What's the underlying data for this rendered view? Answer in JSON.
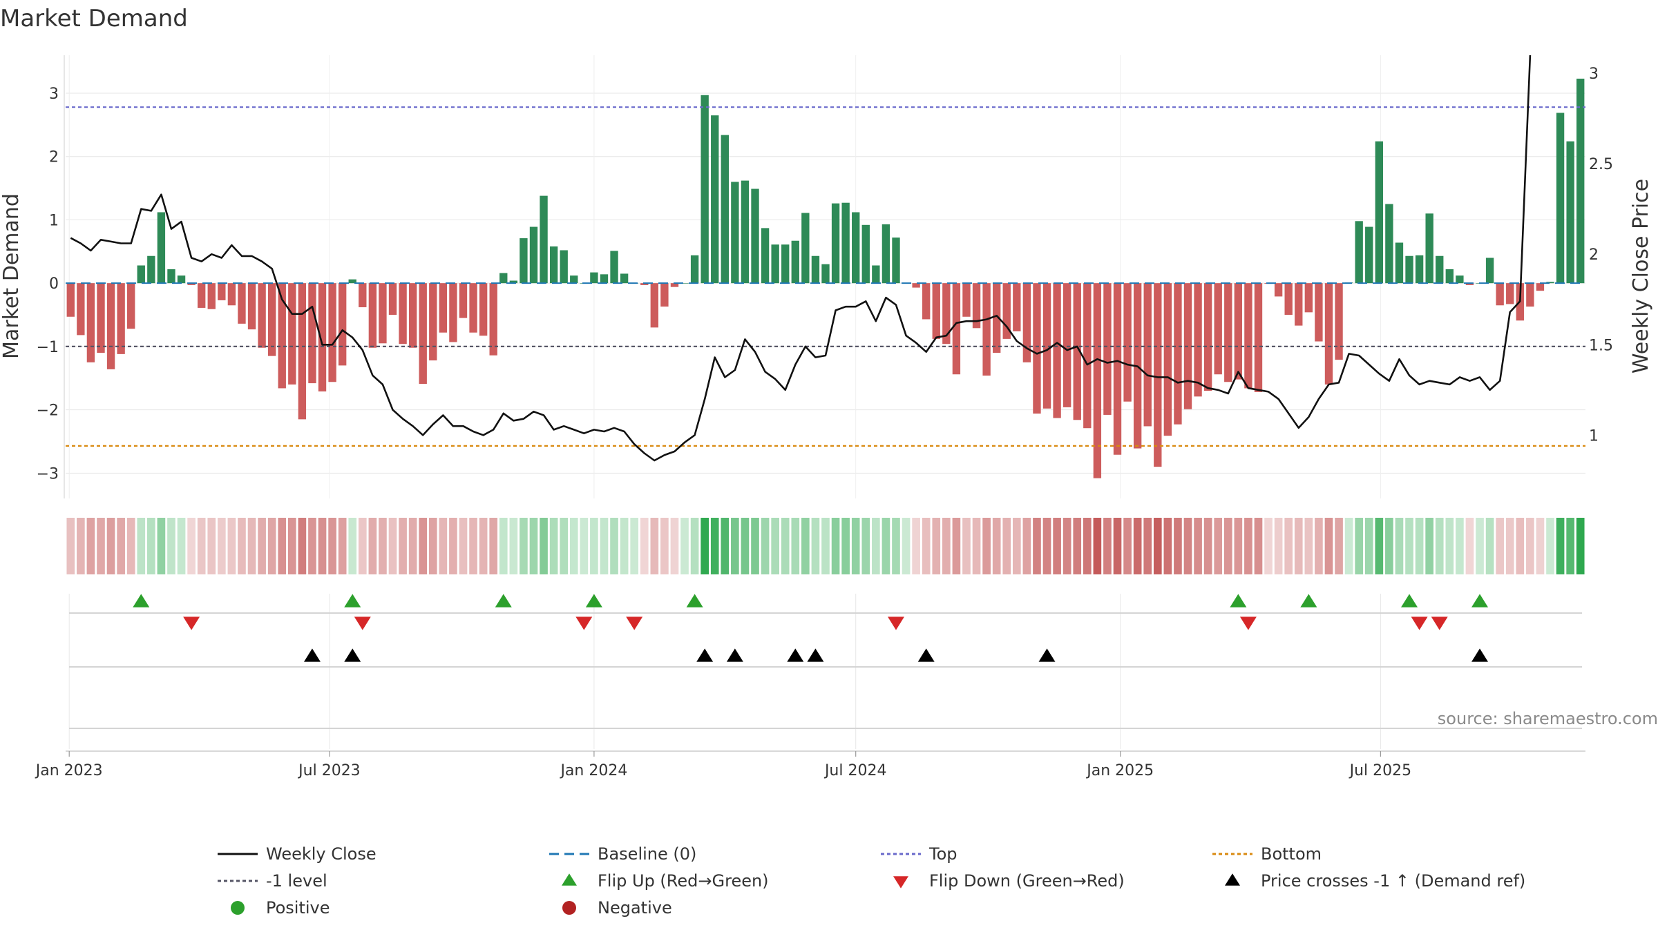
{
  "chart_data": {
    "type": "bar",
    "title": "Market Demand",
    "ylabel": "Market Demand",
    "y2label": "Weekly Close Price",
    "ylim": [
      -3.4,
      3.6
    ],
    "y2lim": [
      0.65,
      3.1
    ],
    "yticks": [
      3,
      2,
      1,
      0,
      -1,
      -2,
      -3
    ],
    "ytick_labels": [
      "3",
      "2",
      "1",
      "0",
      "−1",
      "−2",
      "−3"
    ],
    "y2ticks": [
      3,
      2.5,
      2,
      1.5,
      1
    ],
    "y2tick_labels": [
      "3",
      "2.5",
      "2",
      "1.5",
      "1"
    ],
    "start_date": "2023-01-02",
    "xticks": [
      {
        "date": "2023-01-01",
        "label": "Jan 2023"
      },
      {
        "date": "2023-07-01",
        "label": "Jul 2023"
      },
      {
        "date": "2024-01-01",
        "label": "Jan 2024"
      },
      {
        "date": "2024-07-01",
        "label": "Jul 2024"
      },
      {
        "date": "2025-01-01",
        "label": "Jan 2025"
      },
      {
        "date": "2025-07-01",
        "label": "Jul 2025"
      }
    ],
    "reference_lines": {
      "top": 2.78,
      "minus_one": -1,
      "bottom": -2.57,
      "baseline": 0
    },
    "series": [
      {
        "name": "Market Demand",
        "values": [
          -0.53,
          -0.82,
          -1.25,
          -1.1,
          -1.36,
          -1.12,
          -0.72,
          0.28,
          0.43,
          1.12,
          0.22,
          0.12,
          -0.03,
          -0.39,
          -0.41,
          -0.27,
          -0.35,
          -0.64,
          -0.73,
          -1.02,
          -1.15,
          -1.66,
          -1.6,
          -2.15,
          -1.58,
          -1.71,
          -1.56,
          -1.3,
          0.06,
          -0.38,
          -1.02,
          -0.95,
          -0.5,
          -0.96,
          -1.02,
          -1.59,
          -1.22,
          -0.78,
          -0.93,
          -0.55,
          -0.78,
          -0.83,
          -1.14,
          0.16,
          0.04,
          0.71,
          0.89,
          1.38,
          0.58,
          0.52,
          0.12,
          0.0,
          0.17,
          0.14,
          0.51,
          0.15,
          0.0,
          -0.03,
          -0.7,
          -0.37,
          -0.06,
          0.0,
          0.44,
          2.97,
          2.65,
          2.34,
          1.6,
          1.62,
          1.49,
          0.87,
          0.61,
          0.61,
          0.67,
          1.11,
          0.43,
          0.3,
          1.26,
          1.27,
          1.12,
          0.92,
          0.28,
          0.93,
          0.72,
          0.0,
          -0.07,
          -0.57,
          -0.88,
          -0.96,
          -1.44,
          -0.53,
          -0.71,
          -1.46,
          -1.1,
          -0.88,
          -0.76,
          -1.25,
          -2.06,
          -1.98,
          -2.13,
          -1.96,
          -2.16,
          -2.29,
          -3.08,
          -2.08,
          -2.71,
          -1.87,
          -2.61,
          -2.26,
          -2.9,
          -2.41,
          -2.23,
          -1.99,
          -1.79,
          -1.7,
          -1.44,
          -1.56,
          -1.52,
          -1.66,
          -1.72,
          -0.01,
          -0.21,
          -0.5,
          -0.67,
          -0.46,
          -0.92,
          -1.6,
          -1.21,
          0.01,
          0.98,
          0.89,
          2.24,
          1.25,
          0.64,
          0.43,
          0.44,
          1.1,
          0.43,
          0.22,
          0.12,
          -0.03,
          0.0,
          0.4,
          -0.35,
          -0.33,
          -0.59,
          -0.37,
          -0.12,
          0.02,
          2.69,
          2.24,
          3.23
        ]
      },
      {
        "name": "Weekly Close",
        "axis": "right",
        "values": [
          2.09,
          2.06,
          2.02,
          2.08,
          2.07,
          2.06,
          2.06,
          2.25,
          2.24,
          2.33,
          2.14,
          2.18,
          1.98,
          1.96,
          2.0,
          1.98,
          2.05,
          1.99,
          1.99,
          1.96,
          1.92,
          1.75,
          1.67,
          1.67,
          1.71,
          1.5,
          1.5,
          1.58,
          1.54,
          1.47,
          1.33,
          1.28,
          1.14,
          1.09,
          1.05,
          1.0,
          1.06,
          1.11,
          1.05,
          1.05,
          1.02,
          1.0,
          1.03,
          1.12,
          1.08,
          1.09,
          1.13,
          1.11,
          1.03,
          1.05,
          1.03,
          1.01,
          1.03,
          1.02,
          1.04,
          1.02,
          0.95,
          0.9,
          0.86,
          0.89,
          0.91,
          0.96,
          1.0,
          1.2,
          1.43,
          1.32,
          1.36,
          1.53,
          1.46,
          1.35,
          1.31,
          1.25,
          1.39,
          1.49,
          1.43,
          1.44,
          1.69,
          1.71,
          1.71,
          1.74,
          1.63,
          1.76,
          1.72,
          1.55,
          1.51,
          1.46,
          1.54,
          1.55,
          1.62,
          1.63,
          1.63,
          1.64,
          1.66,
          1.6,
          1.52,
          1.48,
          1.45,
          1.47,
          1.51,
          1.47,
          1.49,
          1.39,
          1.42,
          1.4,
          1.41,
          1.39,
          1.38,
          1.33,
          1.32,
          1.32,
          1.29,
          1.3,
          1.29,
          1.26,
          1.25,
          1.23,
          1.35,
          1.26,
          1.25,
          1.24,
          1.2,
          1.12,
          1.04,
          1.1,
          1.2,
          1.28,
          1.29,
          1.45,
          1.44,
          1.39,
          1.34,
          1.3,
          1.42,
          1.33,
          1.28,
          1.3,
          1.29,
          1.28,
          1.32,
          1.3,
          1.32,
          1.25,
          1.3,
          1.68,
          1.74,
          3.1
        ]
      }
    ],
    "flip_up_weeks": [
      7,
      28,
      43,
      52,
      62,
      116,
      123,
      133,
      140
    ],
    "flip_down_weeks": [
      12,
      29,
      51,
      56,
      82,
      117,
      134,
      136
    ],
    "price_cross_weeks": [
      24,
      28,
      63,
      66,
      72,
      74,
      85,
      97,
      140
    ],
    "legend": [
      {
        "label": "Weekly Close",
        "marker": "line",
        "color": "#111111"
      },
      {
        "label": "Baseline (0)",
        "marker": "dash",
        "color": "#1f77b4"
      },
      {
        "label": "Top",
        "marker": "dot-line",
        "color": "#6a6acb"
      },
      {
        "label": "Bottom",
        "marker": "dot-line",
        "color": "#d98a10"
      },
      {
        "label": "-1 level",
        "marker": "dot-line",
        "color": "#555566"
      },
      {
        "label": "Flip Up (Red→Green)",
        "marker": "tri-up",
        "color": "#2ca02c"
      },
      {
        "label": "Flip Down (Green→Red)",
        "marker": "tri-down",
        "color": "#d62728"
      },
      {
        "label": "Price crosses -1 ↑ (Demand ref)",
        "marker": "tri-up",
        "color": "#000000"
      },
      {
        "label": "Positive",
        "marker": "circle",
        "color": "#2ca02c"
      },
      {
        "label": "Negative",
        "marker": "circle",
        "color": "#b22222"
      }
    ],
    "colors": {
      "positive": "#2e8a57",
      "negative": "#cd5c5c",
      "close": "#111111",
      "heat_pos": "#2ea84f",
      "heat_neg": "#c45a5a"
    }
  },
  "source_note": "source: sharemaestro.com"
}
